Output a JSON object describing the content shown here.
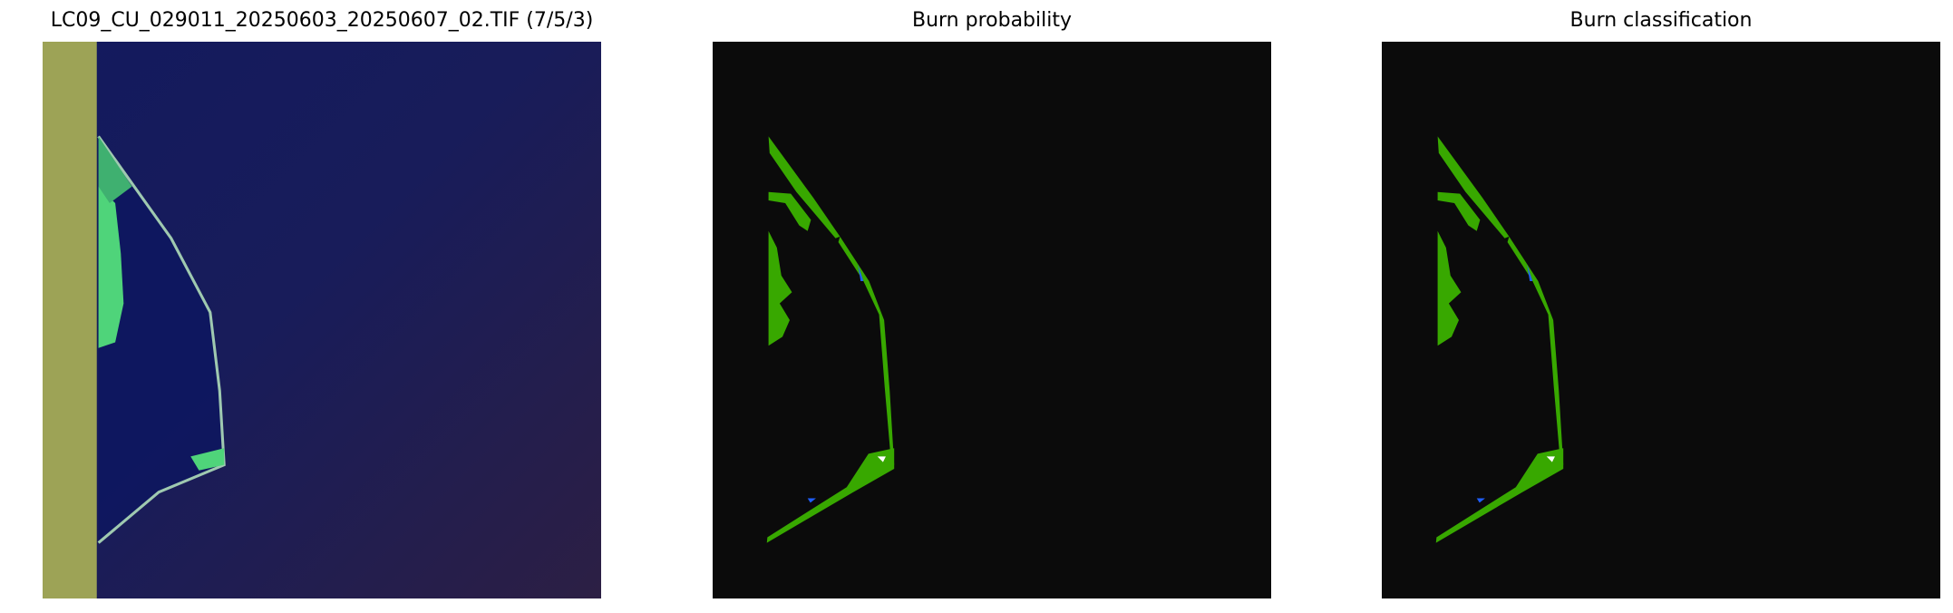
{
  "figure": {
    "panels": [
      {
        "title": "LC09_CU_029011_20250603_20250607_02.TIF (7/5/3)",
        "kind": "false-color composite"
      },
      {
        "title": "Burn probability",
        "kind": "probability map"
      },
      {
        "title": "Burn classification",
        "kind": "classification map"
      }
    ],
    "colors": {
      "background_map": "#0b0b0b",
      "burn_green": "#38a800",
      "water_blue": "#1f5fff",
      "nodata_strip": "#9da356",
      "ocean_navy": "#151a5c"
    }
  }
}
